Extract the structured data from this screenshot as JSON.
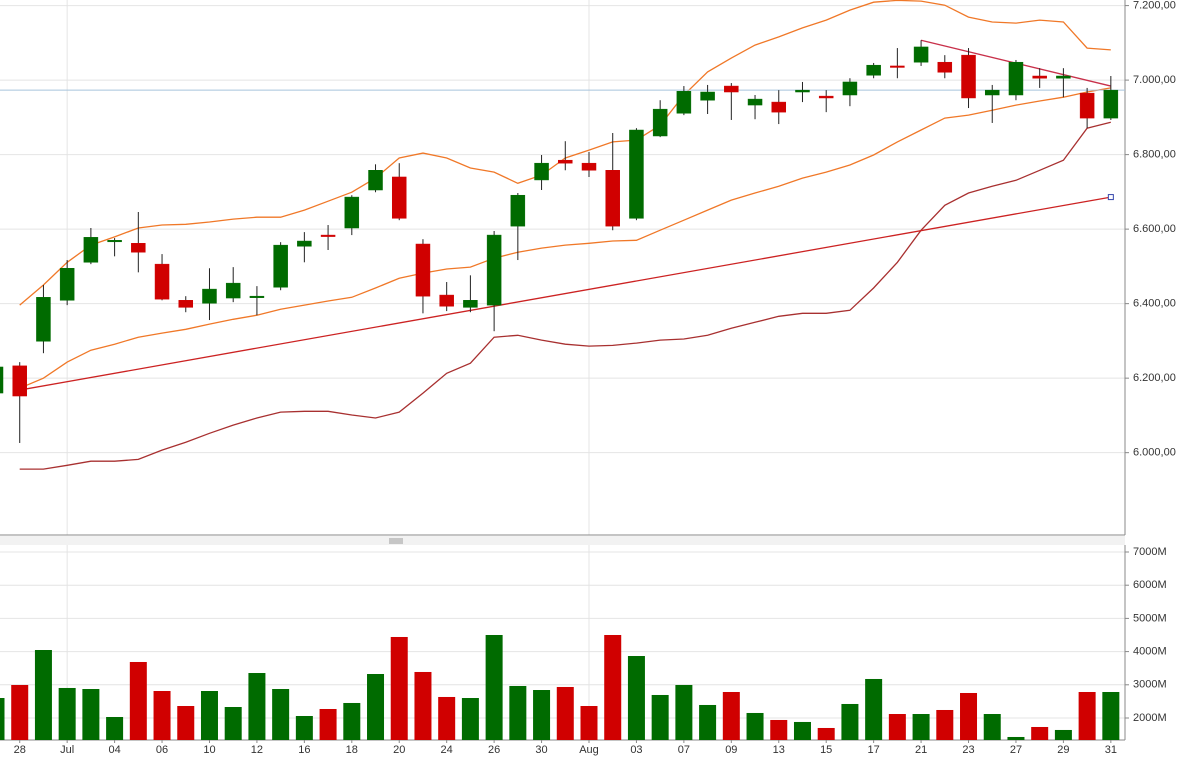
{
  "chart_data": [
    {
      "type": "candlestick",
      "categories": [
        null,
        "28",
        null,
        "Jul",
        null,
        "04",
        null,
        "06",
        null,
        "10",
        null,
        "12",
        null,
        "16",
        null,
        "18",
        null,
        "20",
        null,
        "24",
        null,
        "26",
        null,
        "30",
        null,
        "Aug",
        null,
        "03",
        null,
        "07",
        null,
        "09",
        null,
        "13",
        null,
        "15",
        null,
        "17",
        null,
        "21",
        null,
        "23",
        null,
        "27",
        null,
        "29",
        null,
        "31"
      ],
      "open": [
        6160,
        6233,
        6299,
        6409,
        6511,
        6567,
        6562,
        6506,
        6409,
        6401,
        6415,
        6417,
        6444,
        6554,
        6584,
        6603,
        6705,
        6740,
        6560,
        6423,
        6390,
        6396,
        6608,
        6732,
        6785,
        6777,
        6758,
        6629,
        6850,
        6911,
        6946,
        6984,
        6933,
        6941,
        6968,
        6957,
        6960,
        7013,
        7038,
        7048,
        7048,
        7067,
        6960,
        6960,
        7011,
        7005,
        6965,
        6898
      ],
      "high": [
        6235,
        6243,
        6450,
        6517,
        6603,
        6576,
        6646,
        6533,
        6420,
        6495,
        6498,
        6447,
        6565,
        6592,
        6611,
        6691,
        6774,
        6777,
        6573,
        6458,
        6476,
        6595,
        6697,
        6799,
        6836,
        6807,
        6858,
        6871,
        6946,
        6984,
        6987,
        6992,
        6960,
        6973,
        6995,
        6973,
        7005,
        7046,
        7086,
        7107,
        7067,
        7086,
        6987,
        7054,
        7032,
        7032,
        6979,
        7011
      ],
      "low": [
        6155,
        6026,
        6267,
        6396,
        6506,
        6527,
        6484,
        6409,
        6377,
        6356,
        6404,
        6369,
        6436,
        6511,
        6544,
        6584,
        6699,
        6624,
        6374,
        6380,
        6377,
        6326,
        6517,
        6705,
        6758,
        6740,
        6597,
        6624,
        6847,
        6906,
        6909,
        6893,
        6895,
        6882,
        6941,
        6914,
        6930,
        7005,
        7005,
        7038,
        7005,
        6925,
        6885,
        6946,
        6979,
        6954,
        6871,
        6893
      ],
      "close": [
        6230,
        6152,
        6417,
        6495,
        6578,
        6570,
        6538,
        6412,
        6390,
        6439,
        6455,
        6420,
        6557,
        6568,
        6581,
        6686,
        6758,
        6629,
        6420,
        6393,
        6409,
        6584,
        6691,
        6777,
        6777,
        6758,
        6608,
        6866,
        6922,
        6970,
        6968,
        6968,
        6949,
        6914,
        6973,
        6952,
        6995,
        7040,
        7035,
        7089,
        7021,
        6952,
        6973,
        7048,
        7005,
        7011,
        6898,
        6973
      ],
      "up_color": "#006b00",
      "down_color": "#d00000",
      "wick_color": "#222222",
      "ylim": [
        5779,
        7215
      ],
      "yticks": [
        {
          "value": 6000,
          "label": "6.000,00"
        },
        {
          "value": 6200,
          "label": "6.200,00"
        },
        {
          "value": 6400,
          "label": "6.400,00"
        },
        {
          "value": 6600,
          "label": "6.600,00"
        },
        {
          "value": 6800,
          "label": "6.800,00"
        },
        {
          "value": 7000,
          "label": "7.000,00"
        },
        {
          "value": 7200,
          "label": "7.200,00"
        }
      ],
      "grid": true,
      "overlays": [
        {
          "color": "#f07828",
          "values": [
            null,
            6396,
            6450,
            6511,
            6557,
            6579,
            6603,
            6611,
            6613,
            6619,
            6627,
            6632,
            6632,
            6651,
            6675,
            6699,
            6737,
            6791,
            6804,
            6791,
            6764,
            6753,
            6723,
            6745,
            6791,
            6812,
            6834,
            6839,
            6879,
            6960,
            7022,
            7059,
            7094,
            7116,
            7140,
            7161,
            7188,
            7209,
            7214,
            7212,
            7201,
            7169,
            7156,
            7153,
            7161,
            7156,
            7086,
            7081
          ]
        },
        {
          "color": "#f07828",
          "values": [
            null,
            6173,
            6200,
            6243,
            6275,
            6291,
            6310,
            6321,
            6331,
            6345,
            6358,
            6369,
            6385,
            6396,
            6407,
            6417,
            6442,
            6468,
            6482,
            6493,
            6498,
            6522,
            6538,
            6549,
            6557,
            6562,
            6568,
            6570,
            6597,
            6624,
            6651,
            6678,
            6697,
            6715,
            6737,
            6753,
            6772,
            6799,
            6834,
            6866,
            6898,
            6906,
            6919,
            6933,
            6944,
            6954,
            6968,
            6979
          ]
        },
        {
          "color": "#a83030",
          "values": [
            null,
            5956,
            5956,
            5966,
            5977,
            5977,
            5982,
            6007,
            6028,
            6052,
            6074,
            6093,
            6109,
            6111,
            6111,
            6101,
            6093,
            6109,
            6160,
            6213,
            6240,
            6310,
            6315,
            6302,
            6291,
            6286,
            6288,
            6294,
            6302,
            6305,
            6315,
            6334,
            6350,
            6366,
            6374,
            6374,
            6382,
            6442,
            6511,
            6597,
            6664,
            6697,
            6715,
            6731,
            6758,
            6785,
            6871,
            6887
          ]
        }
      ],
      "trendlines": [
        {
          "color": "#cc2222",
          "points": [
            1,
            47
          ],
          "values": [
            6168,
            6686
          ]
        },
        {
          "color": "#c8304a",
          "points": [
            39,
            47
          ],
          "values": [
            7107,
            6984
          ]
        }
      ],
      "price_line_color": "#a8c4dc"
    },
    {
      "type": "bar",
      "values": [
        2602,
        2994,
        4048,
        2904,
        2873,
        2030,
        3687,
        2813,
        2361,
        2813,
        2331,
        3355,
        2873,
        2060,
        2271,
        2452,
        3325,
        4440,
        3386,
        2633,
        2602,
        4500,
        2964,
        2843,
        2934,
        2361,
        4500,
        3867,
        2693,
        2994,
        2392,
        2783,
        2151,
        1940,
        1880,
        1699,
        2422,
        3175,
        2120,
        2120,
        2241,
        2753,
        2120,
        1428,
        1729,
        1639,
        2783,
        2783
      ],
      "up_color": "#006b00",
      "down_color": "#d00000",
      "ylim": [
        1337,
        7211
      ],
      "yticks": [
        {
          "value": 2000,
          "label": "2000M"
        },
        {
          "value": 3000,
          "label": "3000M"
        },
        {
          "value": 4000,
          "label": "4000M"
        },
        {
          "value": 5000,
          "label": "5000M"
        },
        {
          "value": 6000,
          "label": "6000M"
        },
        {
          "value": 7000,
          "label": "7000M"
        }
      ],
      "grid": true
    }
  ]
}
